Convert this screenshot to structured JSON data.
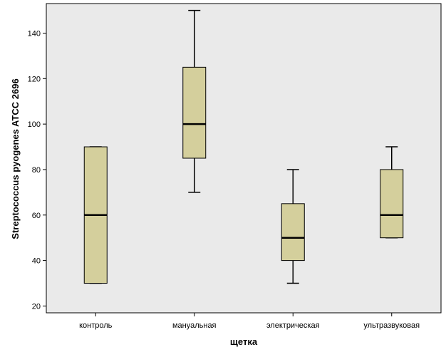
{
  "chart_data": {
    "type": "box",
    "xlabel": "щетка",
    "ylabel": "Streptococcus pyogenes ATCC 2696",
    "ylim": [
      17,
      153
    ],
    "yticks": [
      20,
      40,
      60,
      80,
      100,
      120,
      140
    ],
    "grid": false,
    "colors": {
      "plot_background": "#eaeaea",
      "box_fill": "#d4cf9c",
      "stroke": "#000000"
    },
    "categories": [
      "контроль",
      "мануальная",
      "электрическая",
      "ультразвуковая"
    ],
    "boxes": [
      {
        "min": 30,
        "q1": 30,
        "median": 60,
        "q3": 90,
        "max": 90
      },
      {
        "min": 70,
        "q1": 85,
        "median": 100,
        "q3": 125,
        "max": 150
      },
      {
        "min": 30,
        "q1": 40,
        "median": 50,
        "q3": 65,
        "max": 80
      },
      {
        "min": 50,
        "q1": 50,
        "median": 60,
        "q3": 80,
        "max": 90
      }
    ]
  }
}
